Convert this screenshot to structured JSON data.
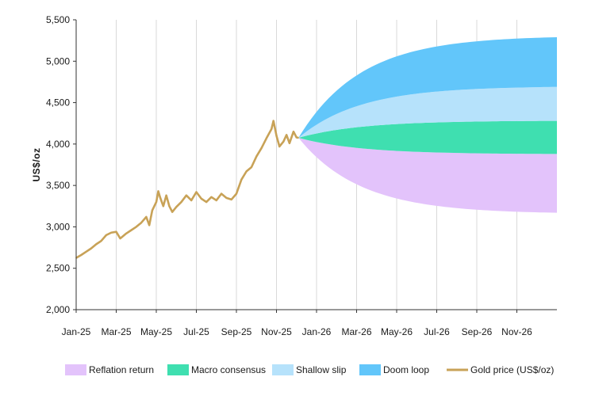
{
  "chart_data": {
    "type": "area",
    "title": "",
    "xlabel": "",
    "ylabel": "US$/oz",
    "ylim": [
      2000,
      5500
    ],
    "yticks": [
      2000,
      2500,
      3000,
      3500,
      4000,
      4500,
      5000,
      5500
    ],
    "ytick_labels": [
      "2,000",
      "2,500",
      "3,000",
      "3,500",
      "4,000",
      "4,500",
      "5,000",
      "5,500"
    ],
    "x_range_months": [
      0,
      24
    ],
    "xticks": [
      {
        "label": "Jan-25",
        "month": 0
      },
      {
        "label": "Mar-25",
        "month": 2
      },
      {
        "label": "May-25",
        "month": 4
      },
      {
        "label": "Jul-25",
        "month": 6
      },
      {
        "label": "Sep-25",
        "month": 8
      },
      {
        "label": "Nov-25",
        "month": 10
      },
      {
        "label": "Jan-26",
        "month": 12
      },
      {
        "label": "Mar-26",
        "month": 14
      },
      {
        "label": "May-26",
        "month": 16
      },
      {
        "label": "Jul-26",
        "month": 18
      },
      {
        "label": "Sep-26",
        "month": 20
      },
      {
        "label": "Nov-26",
        "month": 22
      }
    ],
    "grid": "vertical",
    "legend_position": "bottom",
    "forecast_start": {
      "month": 11.1,
      "value": 4075
    },
    "forecast_end_month": 24,
    "scenarios": [
      {
        "name": "Reflation return",
        "color": "#e3c3fb",
        "low_end": 3170,
        "high_end": 3880
      },
      {
        "name": "Macro consensus",
        "color": "#3fdfb0",
        "low_end": 3880,
        "high_end": 4280
      },
      {
        "name": "Shallow slip",
        "color": "#b6e2fb",
        "low_end": 4280,
        "high_end": 4690
      },
      {
        "name": "Doom loop",
        "color": "#62c6fa",
        "low_end": 4690,
        "high_end": 5290
      }
    ],
    "series": [
      {
        "name": "Gold price (US$/oz)",
        "color": "#c8a257",
        "type": "line",
        "points": [
          [
            0.0,
            2625
          ],
          [
            0.25,
            2660
          ],
          [
            0.5,
            2700
          ],
          [
            0.75,
            2740
          ],
          [
            1.0,
            2790
          ],
          [
            1.25,
            2830
          ],
          [
            1.5,
            2900
          ],
          [
            1.75,
            2930
          ],
          [
            2.0,
            2940
          ],
          [
            2.2,
            2860
          ],
          [
            2.5,
            2920
          ],
          [
            2.75,
            2960
          ],
          [
            3.0,
            3000
          ],
          [
            3.25,
            3050
          ],
          [
            3.5,
            3120
          ],
          [
            3.65,
            3020
          ],
          [
            3.8,
            3200
          ],
          [
            4.0,
            3300
          ],
          [
            4.1,
            3430
          ],
          [
            4.2,
            3350
          ],
          [
            4.35,
            3250
          ],
          [
            4.5,
            3380
          ],
          [
            4.65,
            3250
          ],
          [
            4.8,
            3180
          ],
          [
            5.0,
            3240
          ],
          [
            5.25,
            3300
          ],
          [
            5.5,
            3380
          ],
          [
            5.75,
            3320
          ],
          [
            6.0,
            3420
          ],
          [
            6.25,
            3340
          ],
          [
            6.5,
            3300
          ],
          [
            6.75,
            3360
          ],
          [
            7.0,
            3320
          ],
          [
            7.25,
            3400
          ],
          [
            7.5,
            3350
          ],
          [
            7.75,
            3330
          ],
          [
            8.0,
            3400
          ],
          [
            8.25,
            3570
          ],
          [
            8.5,
            3670
          ],
          [
            8.75,
            3720
          ],
          [
            9.0,
            3850
          ],
          [
            9.25,
            3950
          ],
          [
            9.5,
            4070
          ],
          [
            9.75,
            4180
          ],
          [
            9.85,
            4280
          ],
          [
            10.0,
            4100
          ],
          [
            10.15,
            3970
          ],
          [
            10.35,
            4030
          ],
          [
            10.5,
            4110
          ],
          [
            10.65,
            4010
          ],
          [
            10.85,
            4150
          ],
          [
            11.0,
            4080
          ],
          [
            11.1,
            4075
          ]
        ]
      }
    ],
    "legend": [
      {
        "label": "Reflation return",
        "color": "#e3c3fb",
        "kind": "box"
      },
      {
        "label": "Macro consensus",
        "color": "#3fdfb0",
        "kind": "box"
      },
      {
        "label": "Shallow slip",
        "color": "#b6e2fb",
        "kind": "box"
      },
      {
        "label": "Doom loop",
        "color": "#62c6fa",
        "kind": "box"
      },
      {
        "label": "Gold price (US$/oz)",
        "color": "#c8a257",
        "kind": "line"
      }
    ]
  }
}
